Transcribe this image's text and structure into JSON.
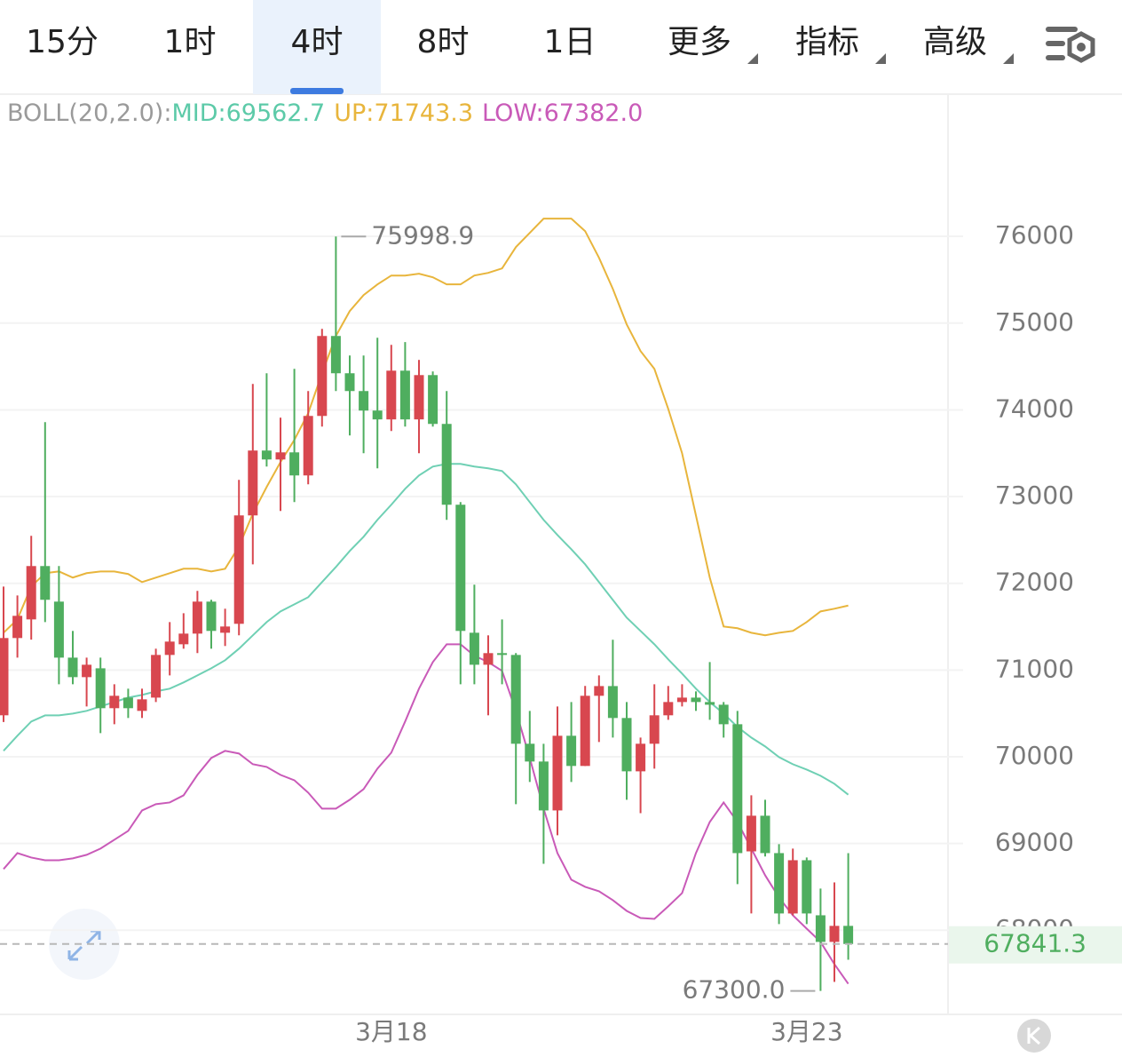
{
  "tabs": [
    {
      "label": "15分"
    },
    {
      "label": "1时"
    },
    {
      "label": "4时"
    },
    {
      "label": "8时"
    },
    {
      "label": "1日"
    },
    {
      "label": "更多",
      "menu": true
    },
    {
      "label": "指标",
      "menu": true
    },
    {
      "label": "高级",
      "menu": true
    }
  ],
  "active_tab": 2,
  "chart_data": {
    "type": "candlestick",
    "indicator_legend": {
      "label": "BOLL(20,2.0):",
      "items": [
        {
          "text": "MID:69562.7",
          "color": "#5ccaa8"
        },
        {
          "text": "UP:71743.3",
          "color": "#e8b53c"
        },
        {
          "text": "LOW:67382.0",
          "color": "#c95ab8"
        }
      ]
    },
    "categories": [
      null,
      null,
      null,
      null,
      null,
      null,
      null,
      null,
      null,
      null,
      null,
      null,
      null,
      null,
      null,
      null,
      null,
      null,
      null,
      null,
      null,
      null,
      null,
      null,
      null,
      null,
      null,
      null,
      "3月18",
      null,
      null,
      null,
      null,
      null,
      null,
      null,
      null,
      null,
      null,
      null,
      null,
      null,
      null,
      null,
      null,
      null,
      null,
      null,
      null,
      null,
      null,
      null,
      null,
      null,
      null,
      null,
      null,
      null,
      "3月23",
      null,
      null,
      null
    ],
    "open": [
      70478,
      71369,
      71584,
      72199,
      71789,
      71143,
      70918,
      71020,
      70560,
      70682,
      70529,
      70682,
      71174,
      71297,
      71420,
      71789,
      71430,
      71533,
      72783,
      73531,
      73428,
      73510,
      73244,
      73930,
      74852,
      74422,
      74217,
      73992,
      73890,
      74452,
      73890,
      74401,
      73838,
      72906,
      71430,
      71061,
      71195,
      71174,
      70150,
      69945,
      69381,
      70242,
      69894,
      70703,
      70815,
      70447,
      69832,
      70150,
      70478,
      70631,
      70682,
      70631,
      70600,
      70375,
      68909,
      69320,
      68889,
      68193,
      68807,
      68172,
      67865,
      68050
    ],
    "high": [
      71963,
      71860,
      72547,
      73859,
      72199,
      71451,
      71143,
      71143,
      70836,
      70785,
      70785,
      71246,
      71553,
      71655,
      71912,
      71810,
      71707,
      73193,
      74299,
      74422,
      73910,
      74473,
      74217,
      74934,
      75998.9,
      74627,
      74627,
      74832,
      74750,
      74781,
      74576,
      74443,
      74217,
      72937,
      71984,
      71400,
      71584,
      71195,
      70529,
      70150,
      70580,
      70631,
      70816,
      70938,
      71349,
      70631,
      70221,
      70836,
      70816,
      70836,
      70754,
      71092,
      70631,
      70529,
      69555,
      69504,
      68992,
      68941,
      68838,
      68480,
      68551,
      68889
    ],
    "low": [
      70400,
      71143,
      71350,
      71553,
      70836,
      70836,
      70580,
      70272,
      70375,
      70447,
      70447,
      70631,
      70938,
      71246,
      71195,
      71246,
      71277,
      71400,
      72219,
      73346,
      72834,
      72937,
      73141,
      73807,
      74217,
      73705,
      73500,
      73326,
      73756,
      73807,
      73500,
      73807,
      72732,
      70836,
      70836,
      70478,
      70836,
      69453,
      69709,
      68766,
      69094,
      69709,
      69894,
      70170,
      70221,
      69504,
      69350,
      69863,
      70426,
      70580,
      70529,
      70426,
      70221,
      68531,
      68193,
      68850,
      68070,
      68172,
      68070,
      67300.0,
      67404,
      67660
    ],
    "close": [
      71369,
      71625,
      72199,
      71810,
      71143,
      70918,
      71061,
      70560,
      70703,
      70560,
      70662,
      71174,
      71328,
      71420,
      71789,
      71451,
      71502,
      72783,
      73531,
      73428,
      73510,
      73244,
      73930,
      74852,
      74422,
      74217,
      73992,
      73890,
      74452,
      73890,
      74401,
      73838,
      72906,
      71451,
      71061,
      71195,
      71174,
      70150,
      69945,
      69381,
      70242,
      69894,
      70703,
      70815,
      70447,
      69832,
      70150,
      70478,
      70631,
      70682,
      70631,
      70600,
      70375,
      68889,
      69320,
      68889,
      68193,
      68807,
      68193,
      67865,
      68050,
      67841.3
    ],
    "up_color": "#d8474f",
    "down_color": "#4fae5f",
    "series": [
      {
        "name": "UP",
        "color": "#e8b53c",
        "values": [
          71430,
          71584,
          71963,
          72117,
          72137,
          72066,
          72117,
          72137,
          72137,
          72107,
          72014,
          72066,
          72117,
          72168,
          72168,
          72137,
          72168,
          72424,
          72803,
          73111,
          73398,
          73654,
          73961,
          74422,
          74852,
          75139,
          75324,
          75447,
          75549,
          75549,
          75570,
          75529,
          75447,
          75447,
          75549,
          75580,
          75631,
          75877,
          76041,
          76205,
          76205,
          76205,
          76061,
          75754,
          75395,
          74986,
          74678,
          74473,
          74012,
          73500,
          72783,
          72066,
          71502,
          71482,
          71430,
          71400,
          71430,
          71451,
          71553,
          71676,
          71707,
          71743.3
        ]
      },
      {
        "name": "MID",
        "color": "#6fd0b4",
        "values": [
          70068,
          70242,
          70406,
          70477,
          70477,
          70498,
          70529,
          70580,
          70631,
          70682,
          70713,
          70754,
          70785,
          70857,
          70938,
          71020,
          71113,
          71246,
          71400,
          71553,
          71676,
          71758,
          71840,
          72014,
          72188,
          72373,
          72537,
          72732,
          72906,
          73090,
          73244,
          73346,
          73377,
          73377,
          73346,
          73326,
          73295,
          73141,
          72936,
          72732,
          72557,
          72393,
          72219,
          72014,
          71809,
          71604,
          71451,
          71297,
          71123,
          70959,
          70785,
          70631,
          70498,
          70344,
          70221,
          70119,
          69996,
          69914,
          69852,
          69781,
          69688,
          69562.7
        ]
      },
      {
        "name": "LOW",
        "color": "#c95ab8",
        "values": [
          68705,
          68889,
          68838,
          68807,
          68807,
          68828,
          68869,
          68941,
          69043,
          69145,
          69381,
          69453,
          69473,
          69555,
          69791,
          69986,
          70068,
          70037,
          69914,
          69883,
          69791,
          69729,
          69586,
          69402,
          69402,
          69504,
          69627,
          69863,
          70047,
          70406,
          70785,
          71092,
          71297,
          71297,
          71164,
          71092,
          70990,
          70529,
          69986,
          69402,
          68889,
          68582,
          68500,
          68449,
          68346,
          68223,
          68141,
          68131,
          68275,
          68428,
          68889,
          69248,
          69473,
          69248,
          68941,
          68633,
          68377,
          68172,
          68018,
          67865,
          67609,
          67382.0
        ]
      }
    ],
    "ylim": [
      67050,
      77620
    ],
    "yticks": [
      68000,
      69000,
      70000,
      71000,
      72000,
      73000,
      74000,
      75000,
      76000
    ],
    "grid": true,
    "max_label": "75998.9",
    "min_label": "67300.0",
    "last_price_label": "67841.3"
  }
}
